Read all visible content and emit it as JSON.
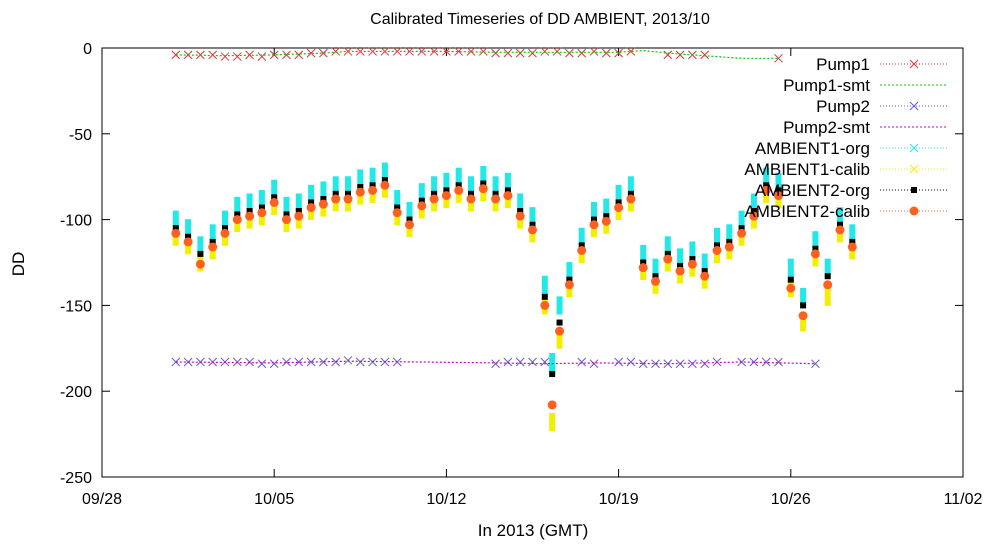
{
  "chart_data": {
    "type": "line",
    "title": "Calibrated Timeseries of DD AMBIENT, 2013/10",
    "xlabel": "In 2013 (GMT)",
    "ylabel": "DD",
    "xlim": [
      "2013-09-28",
      "2013-11-02"
    ],
    "ylim": [
      -250,
      0
    ],
    "x_ticks": [
      "09/28",
      "10/05",
      "10/12",
      "10/19",
      "10/26",
      "11/02"
    ],
    "y_ticks": [
      0,
      -50,
      -100,
      -150,
      -200,
      -250
    ],
    "grid": false,
    "legend": "top-right",
    "series": [
      {
        "name": "Pump1",
        "style": "points",
        "marker": "x",
        "color": "#e8303a",
        "x": [
          "2013-10-01",
          "2013-10-01.5",
          "2013-10-02",
          "2013-10-02.5",
          "2013-10-03",
          "2013-10-03.5",
          "2013-10-04",
          "2013-10-04.5",
          "2013-10-05",
          "2013-10-05.5",
          "2013-10-06",
          "2013-10-06.5",
          "2013-10-07",
          "2013-10-07.5",
          "2013-10-08",
          "2013-10-08.5",
          "2013-10-09",
          "2013-10-09.5",
          "2013-10-10",
          "2013-10-10.5",
          "2013-10-11",
          "2013-10-11.5",
          "2013-10-12",
          "2013-10-12.5",
          "2013-10-13",
          "2013-10-13.5",
          "2013-10-14",
          "2013-10-14.5",
          "2013-10-15",
          "2013-10-15.5",
          "2013-10-16",
          "2013-10-16.5",
          "2013-10-17",
          "2013-10-17.5",
          "2013-10-18",
          "2013-10-18.5",
          "2013-10-19",
          "2013-10-19.5",
          "2013-10-21",
          "2013-10-21.5",
          "2013-10-22",
          "2013-10-22.5",
          "2013-10-25.5"
        ],
        "y": [
          -4,
          -4,
          -4,
          -4,
          -5,
          -5,
          -4,
          -5,
          -4,
          -4,
          -4,
          -3,
          -3,
          -2,
          -2,
          -2,
          -2,
          -2,
          -2,
          -2,
          -2,
          -2,
          -2,
          -2,
          -2,
          -2,
          -3,
          -3,
          -3,
          -3,
          -2,
          -2,
          -3,
          -3,
          -2,
          -3,
          -3,
          -2,
          -4,
          -4,
          -4,
          -4,
          -6
        ]
      },
      {
        "name": "Pump1-smt",
        "style": "line",
        "color": "#00cc00",
        "x": [
          "2013-10-01",
          "2013-10-03",
          "2013-10-05",
          "2013-10-07",
          "2013-10-08",
          "2013-10-10",
          "2013-10-12",
          "2013-10-14",
          "2013-10-16",
          "2013-10-18",
          "2013-10-19",
          "2013-10-20",
          "2013-10-21",
          "2013-10-22",
          "2013-10-23",
          "2013-10-24",
          "2013-10-25",
          "2013-10-25.5"
        ],
        "y": [
          -4,
          -4.5,
          -4,
          -3,
          -2,
          -2,
          -2,
          -2.5,
          -2.5,
          -2.5,
          -2.5,
          -1.5,
          -3,
          -4,
          -5,
          -6,
          -6,
          -6
        ]
      },
      {
        "name": "Pump2",
        "style": "points",
        "marker": "x",
        "color": "#6a5acd",
        "x": [
          "2013-10-01",
          "2013-10-01.5",
          "2013-10-02",
          "2013-10-02.5",
          "2013-10-03",
          "2013-10-03.5",
          "2013-10-04",
          "2013-10-04.5",
          "2013-10-05",
          "2013-10-05.5",
          "2013-10-06",
          "2013-10-06.5",
          "2013-10-07",
          "2013-10-07.5",
          "2013-10-08",
          "2013-10-08.5",
          "2013-10-09",
          "2013-10-09.5",
          "2013-10-10",
          "2013-10-14",
          "2013-10-14.5",
          "2013-10-15",
          "2013-10-15.5",
          "2013-10-16",
          "2013-10-17.5",
          "2013-10-18",
          "2013-10-19",
          "2013-10-19.5",
          "2013-10-20",
          "2013-10-20.5",
          "2013-10-21",
          "2013-10-21.5",
          "2013-10-22",
          "2013-10-22.5",
          "2013-10-23",
          "2013-10-24",
          "2013-10-24.5",
          "2013-10-25",
          "2013-10-25.5",
          "2013-10-27"
        ],
        "y": [
          -183,
          -183,
          -183,
          -183,
          -183,
          -183,
          -183,
          -184,
          -184,
          -183,
          -183,
          -183,
          -183,
          -183,
          -182,
          -183,
          -183,
          -183,
          -183,
          -184,
          -183,
          -183,
          -183,
          -183,
          -183,
          -184,
          -183,
          -183,
          -184,
          -184,
          -184,
          -184,
          -184,
          -184,
          -183,
          -183,
          -183,
          -183,
          -183,
          -184
        ]
      },
      {
        "name": "Pump2-smt",
        "style": "line",
        "color": "#cc00cc",
        "x": [
          "2013-10-01",
          "2013-10-05",
          "2013-10-08",
          "2013-10-11",
          "2013-10-14",
          "2013-10-16",
          "2013-10-18",
          "2013-10-21",
          "2013-10-24",
          "2013-10-27"
        ],
        "y": [
          -183,
          -183.5,
          -182.5,
          -183,
          -183.5,
          -184,
          -183.5,
          -184,
          -183,
          -184
        ]
      },
      {
        "name": "AMBIENT1-org",
        "style": "points",
        "marker": "dot",
        "color": "#22e8e8",
        "x": [
          "2013-10-01",
          "2013-10-01.5",
          "2013-10-02",
          "2013-10-02.5",
          "2013-10-03",
          "2013-10-03.5",
          "2013-10-04",
          "2013-10-04.5",
          "2013-10-05",
          "2013-10-05.5",
          "2013-10-06",
          "2013-10-06.5",
          "2013-10-07",
          "2013-10-07.5",
          "2013-10-08",
          "2013-10-08.5",
          "2013-10-09",
          "2013-10-09.5",
          "2013-10-10",
          "2013-10-10.5",
          "2013-10-11",
          "2013-10-11.5",
          "2013-10-12",
          "2013-10-12.5",
          "2013-10-13",
          "2013-10-13.5",
          "2013-10-14",
          "2013-10-14.5",
          "2013-10-15",
          "2013-10-15.5",
          "2013-10-16",
          "2013-10-16.3",
          "2013-10-16.6",
          "2013-10-17",
          "2013-10-17.5",
          "2013-10-18",
          "2013-10-18.5",
          "2013-10-19",
          "2013-10-19.5",
          "2013-10-20",
          "2013-10-20.5",
          "2013-10-21",
          "2013-10-21.5",
          "2013-10-22",
          "2013-10-22.5",
          "2013-10-23",
          "2013-10-23.5",
          "2013-10-24",
          "2013-10-24.5",
          "2013-10-25",
          "2013-10-25.5",
          "2013-10-26",
          "2013-10-26.5",
          "2013-10-27",
          "2013-10-27.5",
          "2013-10-28",
          "2013-10-28.5"
        ],
        "y": [
          -100,
          -105,
          -115,
          -108,
          -100,
          -92,
          -90,
          -88,
          -82,
          -92,
          -90,
          -85,
          -83,
          -80,
          -80,
          -76,
          -75,
          -72,
          -88,
          -95,
          -84,
          -80,
          -78,
          -75,
          -80,
          -74,
          -80,
          -78,
          -90,
          -98,
          -138,
          -183,
          -150,
          -130,
          -110,
          -95,
          -93,
          -85,
          -80,
          -120,
          -128,
          -115,
          -122,
          -118,
          -125,
          -110,
          -108,
          -100,
          -90,
          -75,
          -78,
          -128,
          -145,
          -112,
          -128,
          -98,
          -108
        ]
      },
      {
        "name": "AMBIENT1-calib",
        "style": "points",
        "marker": "dot",
        "color": "#f0f000",
        "x": [
          "2013-10-01",
          "2013-10-01.5",
          "2013-10-02",
          "2013-10-02.5",
          "2013-10-03",
          "2013-10-03.5",
          "2013-10-04",
          "2013-10-04.5",
          "2013-10-05",
          "2013-10-05.5",
          "2013-10-06",
          "2013-10-06.5",
          "2013-10-07",
          "2013-10-07.5",
          "2013-10-08",
          "2013-10-08.5",
          "2013-10-09",
          "2013-10-09.5",
          "2013-10-10",
          "2013-10-10.5",
          "2013-10-11",
          "2013-10-11.5",
          "2013-10-12",
          "2013-10-12.5",
          "2013-10-13",
          "2013-10-13.5",
          "2013-10-14",
          "2013-10-14.5",
          "2013-10-15",
          "2013-10-15.5",
          "2013-10-16",
          "2013-10-16.3",
          "2013-10-16.6",
          "2013-10-17",
          "2013-10-17.5",
          "2013-10-18",
          "2013-10-18.5",
          "2013-10-19",
          "2013-10-19.5",
          "2013-10-20",
          "2013-10-20.5",
          "2013-10-21",
          "2013-10-21.5",
          "2013-10-22",
          "2013-10-22.5",
          "2013-10-23",
          "2013-10-23.5",
          "2013-10-24",
          "2013-10-24.5",
          "2013-10-25",
          "2013-10-25.5",
          "2013-10-26",
          "2013-10-26.5",
          "2013-10-27",
          "2013-10-27.5",
          "2013-10-28",
          "2013-10-28.5"
        ],
        "y": [
          -110,
          -115,
          -125,
          -118,
          -110,
          -102,
          -100,
          -98,
          -92,
          -102,
          -100,
          -95,
          -93,
          -90,
          -90,
          -86,
          -85,
          -82,
          -98,
          -105,
          -94,
          -90,
          -88,
          -85,
          -90,
          -84,
          -90,
          -88,
          -100,
          -108,
          -150,
          -218,
          -170,
          -140,
          -120,
          -105,
          -103,
          -95,
          -90,
          -130,
          -138,
          -125,
          -132,
          -128,
          -135,
          -120,
          -118,
          -110,
          -100,
          -85,
          -88,
          -140,
          -160,
          -122,
          -145,
          -108,
          -118
        ]
      },
      {
        "name": "AMBIENT2-org",
        "style": "points",
        "marker": "square",
        "color": "#000000",
        "x": [
          "2013-10-01",
          "2013-10-01.5",
          "2013-10-02",
          "2013-10-02.5",
          "2013-10-03",
          "2013-10-03.5",
          "2013-10-04",
          "2013-10-04.5",
          "2013-10-05",
          "2013-10-05.5",
          "2013-10-06",
          "2013-10-06.5",
          "2013-10-07",
          "2013-10-07.5",
          "2013-10-08",
          "2013-10-08.5",
          "2013-10-09",
          "2013-10-09.5",
          "2013-10-10",
          "2013-10-10.5",
          "2013-10-11",
          "2013-10-11.5",
          "2013-10-12",
          "2013-10-12.5",
          "2013-10-13",
          "2013-10-13.5",
          "2013-10-14",
          "2013-10-14.5",
          "2013-10-15",
          "2013-10-15.5",
          "2013-10-16",
          "2013-10-16.3",
          "2013-10-16.6",
          "2013-10-17",
          "2013-10-17.5",
          "2013-10-18",
          "2013-10-18.5",
          "2013-10-19",
          "2013-10-19.5",
          "2013-10-20",
          "2013-10-20.5",
          "2013-10-21",
          "2013-10-21.5",
          "2013-10-22",
          "2013-10-22.5",
          "2013-10-23",
          "2013-10-23.5",
          "2013-10-24",
          "2013-10-24.5",
          "2013-10-25",
          "2013-10-25.5",
          "2013-10-26",
          "2013-10-26.5",
          "2013-10-27",
          "2013-10-27.5",
          "2013-10-28",
          "2013-10-28.5"
        ],
        "y": [
          -105,
          -110,
          -120,
          -113,
          -105,
          -97,
          -95,
          -93,
          -87,
          -97,
          -95,
          -90,
          -88,
          -85,
          -85,
          -81,
          -80,
          -77,
          -93,
          -100,
          -89,
          -85,
          -83,
          -80,
          -85,
          -79,
          -85,
          -83,
          -95,
          -103,
          -145,
          -190,
          -160,
          -135,
          -115,
          -100,
          -98,
          -90,
          -85,
          -125,
          -133,
          -120,
          -127,
          -123,
          -130,
          -115,
          -113,
          -105,
          -95,
          -80,
          -83,
          -135,
          -150,
          -117,
          -133,
          -103,
          -113
        ]
      },
      {
        "name": "AMBIENT2-calib",
        "style": "points",
        "marker": "circle",
        "color": "#ff6020",
        "x": [
          "2013-10-01",
          "2013-10-01.5",
          "2013-10-02",
          "2013-10-02.5",
          "2013-10-03",
          "2013-10-03.5",
          "2013-10-04",
          "2013-10-04.5",
          "2013-10-05",
          "2013-10-05.5",
          "2013-10-06",
          "2013-10-06.5",
          "2013-10-07",
          "2013-10-07.5",
          "2013-10-08",
          "2013-10-08.5",
          "2013-10-09",
          "2013-10-09.5",
          "2013-10-10",
          "2013-10-10.5",
          "2013-10-11",
          "2013-10-11.5",
          "2013-10-12",
          "2013-10-12.5",
          "2013-10-13",
          "2013-10-13.5",
          "2013-10-14",
          "2013-10-14.5",
          "2013-10-15",
          "2013-10-15.5",
          "2013-10-16",
          "2013-10-16.3",
          "2013-10-16.6",
          "2013-10-17",
          "2013-10-17.5",
          "2013-10-18",
          "2013-10-18.5",
          "2013-10-19",
          "2013-10-19.5",
          "2013-10-20",
          "2013-10-20.5",
          "2013-10-21",
          "2013-10-21.5",
          "2013-10-22",
          "2013-10-22.5",
          "2013-10-23",
          "2013-10-23.5",
          "2013-10-24",
          "2013-10-24.5",
          "2013-10-25",
          "2013-10-25.5",
          "2013-10-26",
          "2013-10-26.5",
          "2013-10-27",
          "2013-10-27.5",
          "2013-10-28",
          "2013-10-28.5"
        ],
        "y": [
          -108,
          -113,
          -126,
          -116,
          -108,
          -100,
          -98,
          -96,
          -90,
          -100,
          -98,
          -93,
          -91,
          -88,
          -88,
          -84,
          -83,
          -80,
          -96,
          -103,
          -92,
          -88,
          -86,
          -83,
          -88,
          -82,
          -88,
          -86,
          -98,
          -106,
          -150,
          -208,
          -165,
          -138,
          -118,
          -103,
          -101,
          -93,
          -88,
          -128,
          -136,
          -123,
          -130,
          -126,
          -133,
          -118,
          -116,
          -108,
          -98,
          -83,
          -86,
          -140,
          -156,
          -120,
          -138,
          -106,
          -116
        ]
      }
    ]
  }
}
